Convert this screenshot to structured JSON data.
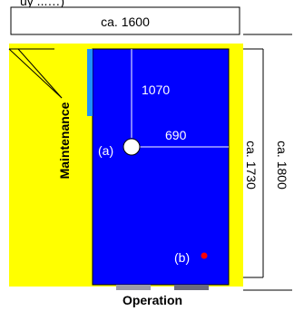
{
  "header_partial": "uy ...…)",
  "dimensions": {
    "width_top": "ca. 1600",
    "depth_1070": "1070",
    "width_690": "690",
    "height_inner": "ca. 1730",
    "height_outer": "ca. 1800"
  },
  "labels": {
    "maintenance": "Maintenance",
    "operation": "Operation",
    "point_a": "(a)",
    "point_b": "(b)"
  },
  "colors": {
    "cabinet_body": "#0000ff",
    "side_panel": "#ffff00",
    "point_b_dot": "#ff0000",
    "accent_strip": "#1e90ff"
  }
}
